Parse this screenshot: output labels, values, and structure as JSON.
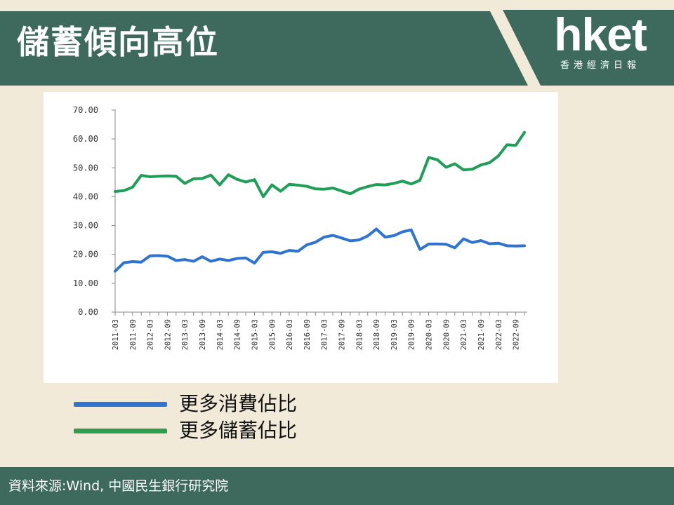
{
  "header": {
    "title": "儲蓄傾向高位",
    "logo_text": "hket",
    "logo_subtitle": "香港經濟日報",
    "colors": {
      "banner": "#3e6a5e",
      "background": "#f1ead9"
    }
  },
  "chart_data": {
    "type": "line",
    "title": "",
    "xlabel": "",
    "ylabel": "",
    "ylim": [
      0,
      70
    ],
    "y_ticks": [
      "70.00",
      "60.00",
      "50.00",
      "40.00",
      "30.00",
      "20.00",
      "10.00",
      "0.00"
    ],
    "x_tick_labels": [
      "2011-03",
      "2011-09",
      "2012-03",
      "2012-09",
      "2013-03",
      "2013-09",
      "2014-03",
      "2014-09",
      "2015-03",
      "2015-09",
      "2016-03",
      "2016-09",
      "2017-03",
      "2017-09",
      "2018-03",
      "2018-09",
      "2019-03",
      "2019-09",
      "2020-03",
      "2020-09",
      "2021-03",
      "2021-09",
      "2022-03",
      "2022-09"
    ],
    "x": [
      "2011-03",
      "2011-06",
      "2011-09",
      "2011-12",
      "2012-03",
      "2012-06",
      "2012-09",
      "2012-12",
      "2013-03",
      "2013-06",
      "2013-09",
      "2013-12",
      "2014-03",
      "2014-06",
      "2014-09",
      "2014-12",
      "2015-03",
      "2015-06",
      "2015-09",
      "2015-12",
      "2016-03",
      "2016-06",
      "2016-09",
      "2016-12",
      "2017-03",
      "2017-06",
      "2017-09",
      "2017-12",
      "2018-03",
      "2018-06",
      "2018-09",
      "2018-12",
      "2019-03",
      "2019-06",
      "2019-09",
      "2019-12",
      "2020-03",
      "2020-06",
      "2020-09",
      "2020-12",
      "2021-03",
      "2021-06",
      "2021-09",
      "2021-12",
      "2022-03",
      "2022-06",
      "2022-09",
      "2022-12"
    ],
    "series": [
      {
        "name": "更多消費佔比",
        "color": "#2f74d0",
        "values": [
          14.2,
          17.1,
          17.5,
          17.3,
          19.5,
          19.6,
          19.4,
          17.9,
          18.2,
          17.6,
          19.2,
          17.6,
          18.4,
          17.9,
          18.6,
          18.8,
          17.0,
          20.7,
          20.9,
          20.4,
          21.4,
          21.1,
          23.3,
          24.2,
          26.0,
          26.6,
          25.7,
          24.7,
          25.0,
          26.4,
          28.8,
          26.0,
          26.5,
          27.8,
          28.5,
          21.7,
          23.6,
          23.6,
          23.5,
          22.3,
          25.4,
          24.1,
          24.8,
          23.7,
          23.9,
          23.0,
          22.9,
          23.0
        ]
      },
      {
        "name": "更多儲蓄佔比",
        "color": "#1e9e56",
        "values": [
          41.8,
          42.1,
          43.3,
          47.4,
          46.9,
          47.1,
          47.2,
          47.1,
          44.6,
          46.2,
          46.3,
          47.5,
          44.1,
          47.6,
          46.0,
          45.1,
          45.9,
          40.0,
          44.1,
          41.9,
          44.3,
          44.0,
          43.6,
          42.7,
          42.6,
          43.0,
          42.0,
          41.0,
          42.6,
          43.5,
          44.2,
          44.1,
          44.6,
          45.4,
          44.4,
          45.7,
          53.6,
          52.8,
          50.2,
          51.4,
          49.3,
          49.5,
          51.0,
          51.8,
          54.1,
          58.0,
          57.8,
          62.3
        ]
      }
    ],
    "legend_placement": "bottom",
    "grid": false
  },
  "legend": [
    {
      "label": "更多消費佔比",
      "color": "#2f74d0"
    },
    {
      "label": "更多儲蓄佔比",
      "color": "#2f9e4c"
    }
  ],
  "footer": {
    "source": "資料來源:Wind, 中國民生銀行研究院"
  }
}
